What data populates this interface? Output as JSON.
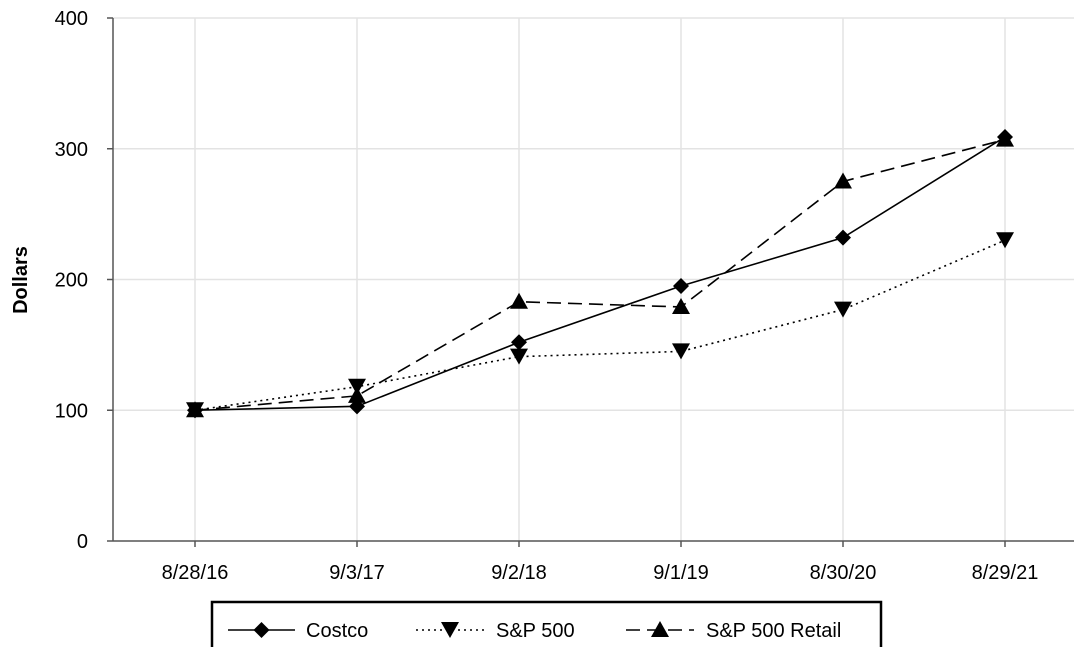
{
  "chart_data": {
    "type": "line",
    "title": "",
    "xlabel": "",
    "ylabel": "Dollars",
    "categories": [
      "8/28/16",
      "9/3/17",
      "9/2/18",
      "9/1/19",
      "8/30/20",
      "8/29/21"
    ],
    "ylim": [
      0,
      400
    ],
    "yticks": [
      0,
      100,
      200,
      300,
      400
    ],
    "grid": "vertical and horizontal",
    "legend_position": "bottom",
    "series": [
      {
        "name": "Costco",
        "values": [
          100,
          103,
          152,
          195,
          232,
          309
        ],
        "line_style": "solid",
        "marker": "diamond",
        "color": "#000000"
      },
      {
        "name": "S&P 500",
        "values": [
          100,
          118,
          141,
          145,
          177,
          230
        ],
        "line_style": "dotted",
        "marker": "triangle-down",
        "color": "#000000"
      },
      {
        "name": "S&P 500 Retail",
        "values": [
          100,
          111,
          183,
          179,
          275,
          307
        ],
        "line_style": "dashed",
        "marker": "triangle-up",
        "color": "#000000"
      }
    ]
  }
}
